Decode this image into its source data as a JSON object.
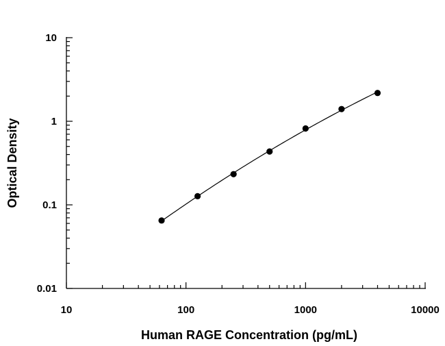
{
  "chart_data": {
    "type": "scatter",
    "xlabel": "Human RAGE Concentration (pg/mL)",
    "ylabel": "Optical Density",
    "xscale": "log",
    "yscale": "log",
    "xlim": [
      10,
      10000
    ],
    "ylim": [
      0.01,
      10
    ],
    "x_ticks": [
      "10",
      "100",
      "1000",
      "10000"
    ],
    "y_ticks": [
      "0.01",
      "0.1",
      "1",
      "10"
    ],
    "grid": false,
    "legend": "none",
    "series": [
      {
        "x": [
          62.5,
          125,
          250,
          500,
          1000,
          2000,
          4000
        ],
        "y": [
          0.065,
          0.127,
          0.233,
          0.435,
          0.82,
          1.4,
          2.18
        ],
        "marker": "filled-circle",
        "fit_line": true,
        "color": "#000000"
      }
    ]
  }
}
